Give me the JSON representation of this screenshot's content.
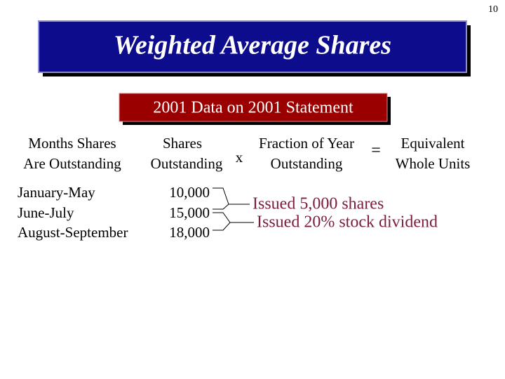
{
  "page_number": "10",
  "title": "Weighted Average Shares",
  "subtitle": "2001 Data on 2001 Statement",
  "table": {
    "headers": [
      [
        "Months Shares",
        "Are Outstanding"
      ],
      [
        "Shares",
        "Outstanding"
      ],
      [
        "Fraction of Year",
        "Outstanding"
      ],
      [
        "Equivalent",
        "Whole Units"
      ]
    ],
    "operators": [
      "x",
      "="
    ],
    "rows": [
      [
        "January-May",
        "10,000"
      ],
      [
        "June-July",
        "15,000"
      ],
      [
        "August-September",
        "18,000"
      ]
    ]
  },
  "annotations": [
    "Issued 5,000 shares",
    "Issued 20% stock dividend"
  ]
}
